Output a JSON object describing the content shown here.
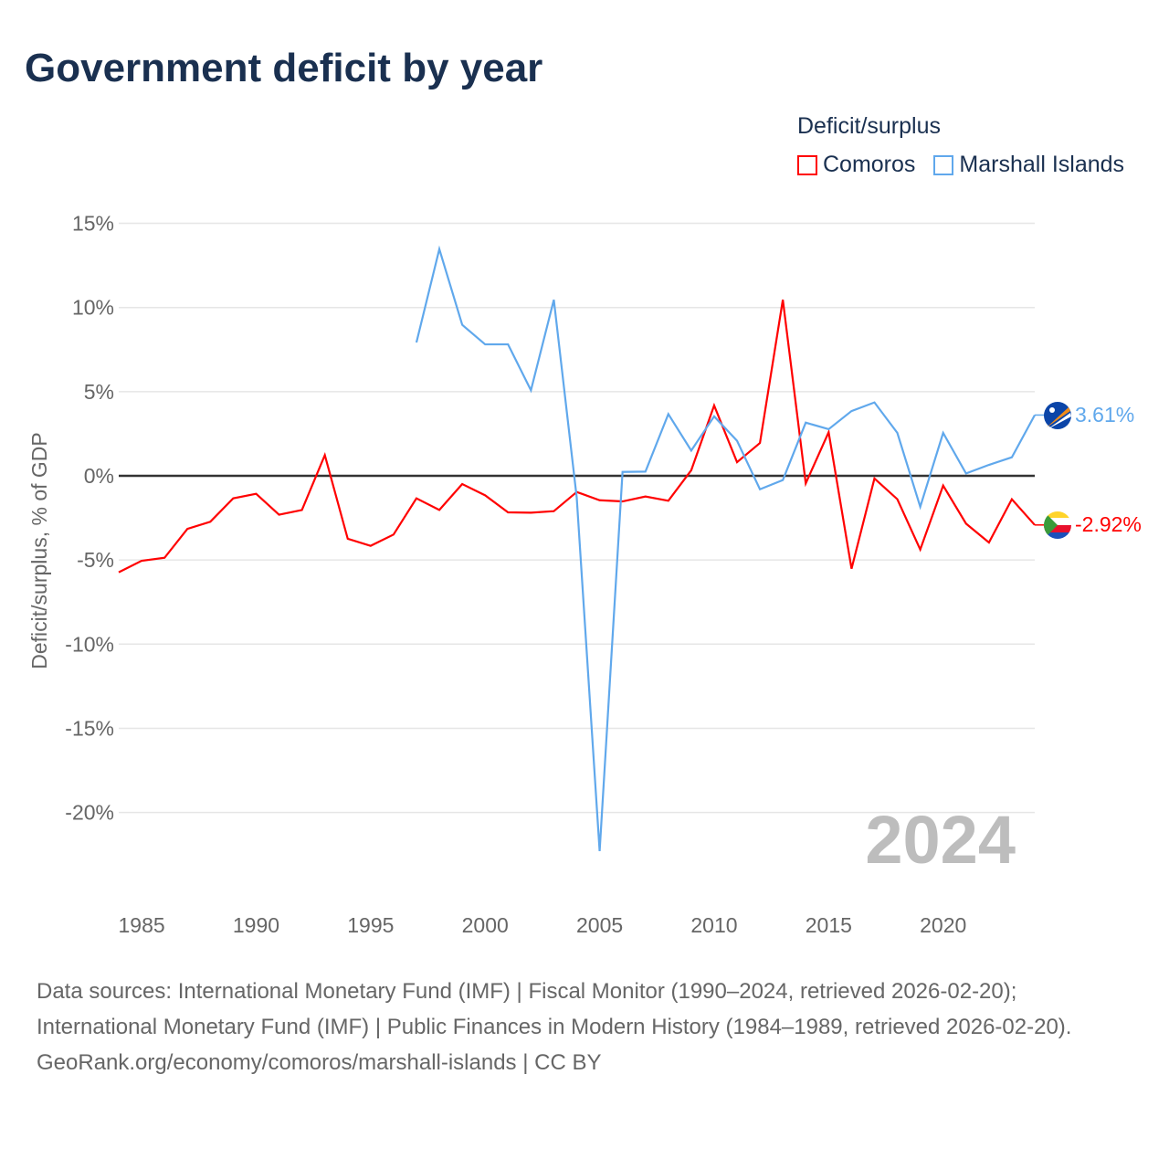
{
  "title": "Government deficit by year",
  "legend": {
    "title": "Deficit/surplus",
    "items": [
      {
        "label": "Comoros",
        "color": "#ff0000"
      },
      {
        "label": "Marshall Islands",
        "color": "#60a8ec"
      }
    ]
  },
  "year_watermark": "2024",
  "end_labels": {
    "comoros": "-2.92%",
    "marshall": "3.61%"
  },
  "sources": {
    "line1": "Data sources: International Monetary Fund (IMF) | Fiscal Monitor (1990–2024, retrieved 2026-02-20); International Monetary Fund (IMF) | Public Finances in Modern History (1984–1989, retrieved 2026-02-20).",
    "line2": "GeoRank.org/economy/comoros/marshall-islands | CC BY"
  },
  "chart_data": {
    "type": "line",
    "title": "Government deficit by year",
    "xlabel": "",
    "ylabel": "Deficit/surplus, % of GDP",
    "xlim": [
      1984,
      2024
    ],
    "x_ticks": [
      1985,
      1990,
      1995,
      2000,
      2005,
      2010,
      2015,
      2020
    ],
    "y_ticks": [
      15,
      10,
      5,
      0,
      -5,
      -10,
      -15,
      -20
    ],
    "y_tick_labels": [
      "15%",
      "10%",
      "5%",
      "0%",
      "-5%",
      "-10%",
      "-15%",
      "-20%"
    ],
    "grid": true,
    "legend_position": "top-right",
    "series": [
      {
        "name": "Comoros",
        "color": "#ff0000",
        "start_year": 1984,
        "values": [
          -5.73,
          -5.05,
          -4.87,
          -3.15,
          -2.73,
          -1.34,
          -1.07,
          -2.31,
          -2.03,
          1.23,
          -3.74,
          -4.16,
          -3.49,
          -1.34,
          -2.03,
          -0.49,
          -1.16,
          -2.17,
          -2.19,
          -2.1,
          -0.96,
          -1.45,
          -1.52,
          -1.23,
          -1.48,
          0.33,
          4.18,
          0.81,
          1.95,
          10.46,
          -0.45,
          2.59,
          -5.52,
          -0.16,
          -1.39,
          -4.38,
          -0.58,
          -2.84,
          -3.96,
          -1.39,
          -2.92
        ]
      },
      {
        "name": "Marshall Islands",
        "color": "#60a8ec",
        "start_year": 1997,
        "values": [
          7.92,
          13.47,
          8.97,
          7.81,
          7.81,
          5.08,
          10.46,
          -1.3,
          -22.3,
          0.23,
          0.25,
          3.67,
          1.5,
          3.53,
          2.08,
          -0.8,
          -0.25,
          3.16,
          2.77,
          3.85,
          4.36,
          2.55,
          -1.84,
          2.55,
          0.14,
          0.65,
          1.1,
          3.61
        ]
      }
    ]
  }
}
